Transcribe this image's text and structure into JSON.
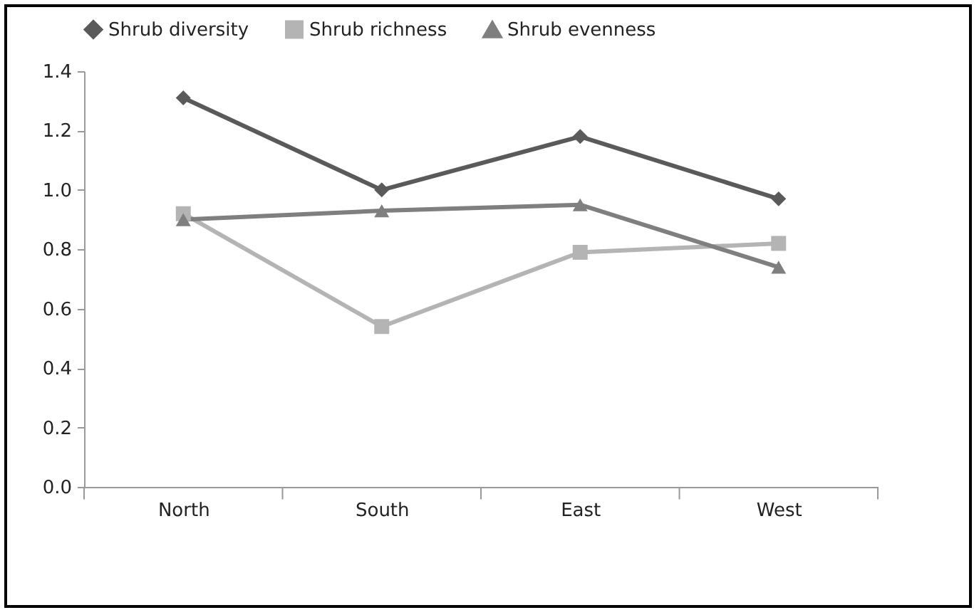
{
  "chart_data": {
    "type": "line",
    "categories": [
      "North",
      "South",
      "East",
      "West"
    ],
    "series": [
      {
        "name": "Shrub diversity",
        "color": "#5a5a5a",
        "marker": "diamond",
        "values": [
          1.31,
          1.0,
          1.18,
          0.97
        ]
      },
      {
        "name": "Shrub richness",
        "color": "#b4b4b4",
        "marker": "square",
        "values": [
          0.92,
          0.54,
          0.79,
          0.82
        ]
      },
      {
        "name": "Shrub evenness",
        "color": "#7f7f7f",
        "marker": "triangle",
        "values": [
          0.9,
          0.93,
          0.95,
          0.74
        ]
      }
    ],
    "ylim": [
      0,
      1.4
    ],
    "yticks": [
      {
        "value": 0,
        "label": "0.0"
      },
      0.2,
      0.4,
      0.6,
      0.8,
      {
        "value": 1,
        "label": "1.0"
      },
      1.2,
      1.4
    ],
    "grid": false,
    "legend": "top",
    "line_style": "solid"
  }
}
